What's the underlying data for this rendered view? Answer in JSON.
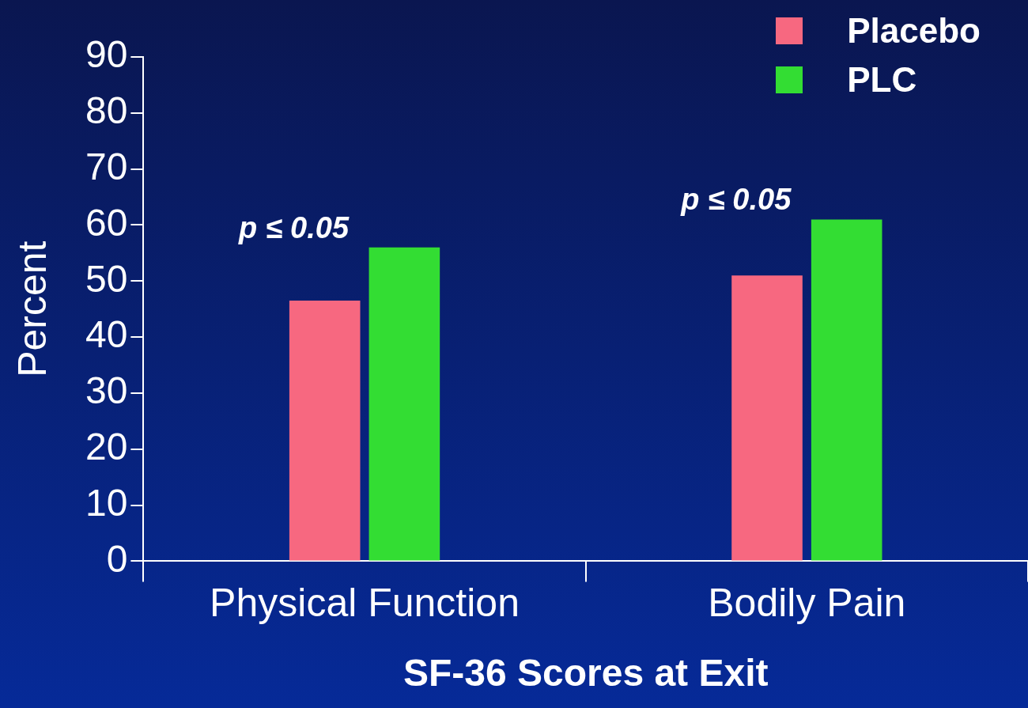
{
  "chart_data": {
    "type": "bar",
    "categories": [
      "Physical Function",
      "Bodily Pain"
    ],
    "series": [
      {
        "name": "Placebo",
        "color": "#f76880",
        "values": [
          46.5,
          51
        ]
      },
      {
        "name": "PLC",
        "color": "#33dd33",
        "values": [
          56,
          61
        ]
      }
    ],
    "ylim": [
      0,
      90
    ],
    "yticks": [
      0,
      10,
      20,
      30,
      40,
      50,
      60,
      70,
      80,
      90
    ],
    "ylabel": "Percent",
    "xlabel": "SF-36 Scores at Exit",
    "legend": "top right",
    "annotations": [
      "p ≤ 0.05",
      "p ≤ 0.05"
    ]
  }
}
